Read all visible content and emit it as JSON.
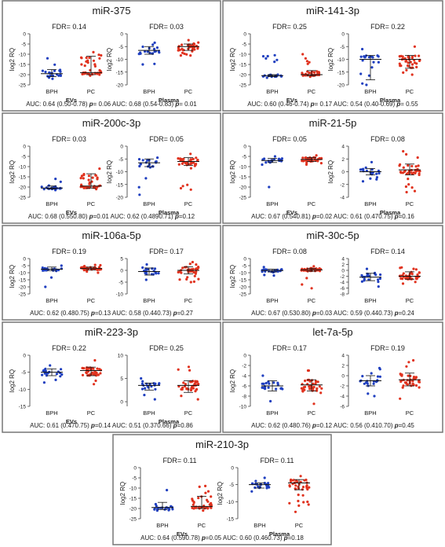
{
  "chart_data": [
    {
      "type": "scatter",
      "title": "miR-375",
      "auc": "AUC: 0.64 (0.50-0.78) p= 0.06   AUC: 0.68 (0.54-0.83) p= 0.01",
      "auc_parts": [
        "AUC: 0.64 (0.50-0.78) ",
        "p",
        "= 0.06",
        "AUC: 0.68 (0.54-0.83) ",
        "p",
        "= 0.01"
      ],
      "panels": [
        {
          "fdr": "FDR= 0.14",
          "ylabel": "log2 RQ",
          "xlabel": "EVs",
          "categories": [
            "BPH",
            "PC"
          ],
          "yticks": [
            0,
            -5,
            -10,
            -15,
            -20,
            -25
          ],
          "ylim": [
            -25,
            0
          ],
          "groups": [
            {
              "name": "BPH",
              "color": "#1f3fbf",
              "median": -19.5,
              "q1": -21,
              "q3": -17.5,
              "n": 20,
              "min": -22,
              "max": -12
            },
            {
              "name": "PC",
              "color": "#e0321e",
              "median": -19,
              "q1": -20,
              "q3": -11,
              "n": 38,
              "min": -20.5,
              "max": -9
            }
          ]
        },
        {
          "fdr": "FDR= 0.03",
          "ylabel": "log2 RQ",
          "xlabel": "Plasma",
          "categories": [
            "BPH",
            "PC"
          ],
          "yticks": [
            0,
            -5,
            -10,
            -15,
            -20
          ],
          "ylim": [
            -20,
            0
          ],
          "groups": [
            {
              "name": "BPH",
              "color": "#1f3fbf",
              "median": -6.5,
              "q1": -8,
              "q3": -5,
              "n": 20,
              "min": -12,
              "max": -3.5
            },
            {
              "name": "PC",
              "color": "#e0321e",
              "median": -5,
              "q1": -6.5,
              "q3": -4,
              "n": 38,
              "min": -8.5,
              "max": -2.5
            }
          ]
        }
      ]
    },
    {
      "type": "scatter",
      "title": "miR-141-3p",
      "auc": "AUC: 0.60 (0.46-0.74) p= 0.17   AUC: 0.54 (0.40-0.69) p= 0.55",
      "auc_parts": [
        "AUC: 0.60 (0.46-0.74) ",
        "p",
        "= 0.17",
        "AUC: 0.54 (0.40-0.69) ",
        "p",
        "= 0.55"
      ],
      "panels": [
        {
          "fdr": "FDR= 0.25",
          "ylabel": "log2 RQ",
          "xlabel": "EVs",
          "categories": [
            "BPH",
            "PC"
          ],
          "yticks": [
            0,
            -5,
            -10,
            -15,
            -20,
            -25
          ],
          "ylim": [
            -25,
            0
          ],
          "groups": [
            {
              "name": "BPH",
              "color": "#1f3fbf",
              "median": -20.5,
              "q1": -21,
              "q3": -20,
              "n": 20,
              "min": -21.5,
              "max": -10.5
            },
            {
              "name": "PC",
              "color": "#e0321e",
              "median": -20,
              "q1": -20.5,
              "q3": -18,
              "n": 38,
              "min": -21,
              "max": -10
            }
          ]
        },
        {
          "fdr": "FDR= 0.22",
          "ylabel": "log2 RQ",
          "xlabel": "Plasma",
          "categories": [
            "BPH",
            "PC"
          ],
          "yticks": [
            0,
            -5,
            -10,
            -15,
            -20
          ],
          "ylim": [
            -20,
            0
          ],
          "groups": [
            {
              "name": "BPH",
              "color": "#1f3fbf",
              "median": -10,
              "q1": -18,
              "q3": -8.5,
              "n": 20,
              "min": -20,
              "max": -6
            },
            {
              "name": "PC",
              "color": "#e0321e",
              "median": -10,
              "q1": -13.5,
              "q3": -8.5,
              "n": 38,
              "min": -16,
              "max": -5
            }
          ]
        }
      ]
    },
    {
      "type": "scatter",
      "title": "miR-200c-3p",
      "auc": "AUC: 0.68 (0.550.80) p=0.01   AUC: 0.62 (0.4890.71) p=0.12",
      "auc_parts": [
        "AUC: 0.68 (0.550.80) ",
        "p",
        "=0.01",
        "AUC: 0.62 (0.4890.71) ",
        "p",
        "=0.12"
      ],
      "panels": [
        {
          "fdr": "FDR= 0.03",
          "ylabel": "log2 RQ",
          "xlabel": "EVs",
          "categories": [
            "BPH",
            "PC"
          ],
          "yticks": [
            0,
            -5,
            -10,
            -15,
            -20,
            -25
          ],
          "ylim": [
            -25,
            0
          ],
          "groups": [
            {
              "name": "BPH",
              "color": "#1f3fbf",
              "median": -20.5,
              "q1": -21,
              "q3": -19.5,
              "n": 20,
              "min": -21.5,
              "max": -16
            },
            {
              "name": "PC",
              "color": "#e0321e",
              "median": -19.5,
              "q1": -20.5,
              "q3": -13.5,
              "n": 38,
              "min": -21,
              "max": -11
            }
          ]
        },
        {
          "fdr": "FDR= 0.05",
          "ylabel": "log2 RQ",
          "xlabel": "Plasma",
          "categories": [
            "BPH",
            "PC"
          ],
          "yticks": [
            0,
            -5,
            -10,
            -15,
            -20
          ],
          "ylim": [
            -20,
            0
          ],
          "groups": [
            {
              "name": "BPH",
              "color": "#1f3fbf",
              "median": -6.5,
              "q1": -8,
              "q3": -5,
              "n": 20,
              "min": -19,
              "max": -4.5
            },
            {
              "name": "PC",
              "color": "#e0321e",
              "median": -6,
              "q1": -7.5,
              "q3": -4.5,
              "n": 38,
              "min": -17,
              "max": -3
            }
          ]
        }
      ]
    },
    {
      "type": "scatter",
      "title": "miR-21-5p",
      "auc": "AUC: 0.67 (0.540.81) p=0.02   AUC: 0.61 (0.470.75) p=0.16",
      "auc_parts": [
        "AUC: 0.67 (0.540.81) ",
        "p",
        "=0.02",
        "AUC: 0.61 (0.470.75) ",
        "p",
        "=0.16"
      ],
      "panels": [
        {
          "fdr": "FDR= 0.05",
          "ylabel": "log2 RQ",
          "xlabel": "EVs",
          "categories": [
            "BPH",
            "PC"
          ],
          "yticks": [
            0,
            -5,
            -10,
            -15,
            -20,
            -25
          ],
          "ylim": [
            -25,
            0
          ],
          "groups": [
            {
              "name": "BPH",
              "color": "#1f3fbf",
              "median": -7,
              "q1": -8,
              "q3": -6,
              "n": 20,
              "min": -20,
              "max": -5
            },
            {
              "name": "PC",
              "color": "#e0321e",
              "median": -6.5,
              "q1": -7.5,
              "q3": -5.5,
              "n": 38,
              "min": -9,
              "max": -4.5
            }
          ]
        },
        {
          "fdr": "FDR= 0.08",
          "ylabel": "log2 RQ",
          "xlabel": "Plasma",
          "categories": [
            "BPH",
            "PC"
          ],
          "yticks": [
            4,
            2,
            0,
            -2,
            -4
          ],
          "ylim": [
            -4,
            4
          ],
          "groups": [
            {
              "name": "BPH",
              "color": "#1f3fbf",
              "median": 0,
              "q1": -0.5,
              "q3": 0.5,
              "n": 20,
              "min": -1.5,
              "max": 1.5
            },
            {
              "name": "PC",
              "color": "#e0321e",
              "median": 0.3,
              "q1": -0.5,
              "q3": 1.2,
              "n": 38,
              "min": -3.2,
              "max": 3.2
            }
          ]
        }
      ]
    },
    {
      "type": "scatter",
      "title": "miR-106a-5p",
      "auc": "AUC: 0.62 (0.480.75) p=0.13   AUC: 0.58 (0.440.73) p=0.27",
      "auc_parts": [
        "AUC: 0.62 (0.480.75) ",
        "p",
        "=0.13",
        "AUC: 0.58 (0.440.73) ",
        "p",
        "=0.27"
      ],
      "panels": [
        {
          "fdr": "FDR= 0.19",
          "ylabel": "log2 RQ",
          "xlabel": "",
          "categories": [
            "BPH",
            "PC"
          ],
          "yticks": [
            0,
            -5,
            -10,
            -15,
            -20,
            -25
          ],
          "ylim": [
            -25,
            0
          ],
          "groups": [
            {
              "name": "BPH",
              "color": "#1f3fbf",
              "median": -7.5,
              "q1": -8.5,
              "q3": -6,
              "n": 20,
              "min": -20,
              "max": -5
            },
            {
              "name": "PC",
              "color": "#e0321e",
              "median": -7,
              "q1": -8,
              "q3": -6,
              "n": 38,
              "min": -10,
              "max": -4.5
            }
          ]
        },
        {
          "fdr": "FDR= 0.17",
          "ylabel": "",
          "xlabel": "",
          "categories": [
            "BPH",
            "PC"
          ],
          "yticks": [
            5,
            0,
            -5,
            -10
          ],
          "ylim": [
            -10,
            5
          ],
          "groups": [
            {
              "name": "BPH",
              "color": "#1f3fbf",
              "median": -0.5,
              "q1": -2,
              "q3": 1,
              "n": 20,
              "min": -4,
              "max": 2.5
            },
            {
              "name": "PC",
              "color": "#e0321e",
              "median": 0,
              "q1": -1.5,
              "q3": 1.5,
              "n": 38,
              "min": -5,
              "max": 3.5
            }
          ]
        }
      ]
    },
    {
      "type": "scatter",
      "title": "miR-30c-5p",
      "auc": "AUC: 0.67 (0.530.80) p=0.03   AUC: 0.59 (0.440.73) p=0.24",
      "auc_parts": [
        "AUC: 0.67 (0.530.80) ",
        "p",
        "=0.03",
        "AUC: 0.59 (0.440.73) ",
        "p",
        "=0.24"
      ],
      "panels": [
        {
          "fdr": "FDR= 0.08",
          "ylabel": "log2 RQ",
          "xlabel": "",
          "categories": [
            "BPH",
            "PC"
          ],
          "yticks": [
            0,
            -5,
            -10,
            -15,
            -20,
            -25
          ],
          "ylim": [
            -25,
            0
          ],
          "groups": [
            {
              "name": "BPH",
              "color": "#1f3fbf",
              "median": -8.5,
              "q1": -9.5,
              "q3": -7.5,
              "n": 20,
              "min": -12,
              "max": -6
            },
            {
              "name": "PC",
              "color": "#e0321e",
              "median": -8,
              "q1": -9,
              "q3": -7,
              "n": 38,
              "min": -21,
              "max": -5.5
            }
          ]
        },
        {
          "fdr": "FDR= 0.14",
          "ylabel": "",
          "xlabel": "",
          "categories": [
            "BPH",
            "PC"
          ],
          "yticks": [
            4,
            2,
            0,
            -2,
            -4,
            -6,
            -8
          ],
          "ylim": [
            -8,
            4
          ],
          "groups": [
            {
              "name": "BPH",
              "color": "#1f3fbf",
              "median": -2.3,
              "q1": -3.5,
              "q3": -1,
              "n": 20,
              "min": -5.5,
              "max": 0.5
            },
            {
              "name": "PC",
              "color": "#e0321e",
              "median": -2,
              "q1": -3,
              "q3": -0.5,
              "n": 38,
              "min": -4.5,
              "max": 1
            }
          ]
        }
      ]
    },
    {
      "type": "scatter",
      "title": "miR-223-3p",
      "auc": "AUC: 0.61 (0.470.75) p=0.14   AUC: 0.51 (0.370.66) p=0.86",
      "auc_parts": [
        "AUC: 0.61 (0.470.75) ",
        "p",
        "=0.14",
        "AUC: 0.51 (0.370.66) ",
        "p",
        "=0.86"
      ],
      "panels": [
        {
          "fdr": "FDR= 0.22",
          "ylabel": "log2 RQ",
          "xlabel": "EVs",
          "categories": [
            "BPH",
            "PC"
          ],
          "yticks": [
            0,
            -5,
            -10,
            -15
          ],
          "ylim": [
            -15,
            0
          ],
          "groups": [
            {
              "name": "BPH",
              "color": "#1f3fbf",
              "median": -5,
              "q1": -6,
              "q3": -4,
              "n": 20,
              "min": -8,
              "max": -3
            },
            {
              "name": "PC",
              "color": "#e0321e",
              "median": -4.5,
              "q1": -6,
              "q3": -3.5,
              "n": 38,
              "min": -8.5,
              "max": -1.5
            }
          ]
        },
        {
          "fdr": "FDR= 0.25",
          "ylabel": "",
          "xlabel": "Plasma",
          "categories": [
            "BPH",
            "PC"
          ],
          "yticks": [
            10,
            5,
            0
          ],
          "ylim": [
            -1,
            10
          ],
          "groups": [
            {
              "name": "BPH",
              "color": "#1f3fbf",
              "median": 3.5,
              "q1": 2.5,
              "q3": 4,
              "n": 20,
              "min": 0.5,
              "max": 5
            },
            {
              "name": "PC",
              "color": "#e0321e",
              "median": 3.5,
              "q1": 2,
              "q3": 4.5,
              "n": 38,
              "min": 0.5,
              "max": 7.5
            }
          ]
        }
      ]
    },
    {
      "type": "scatter",
      "title": "let-7a-5p",
      "auc": "AUC: 0.62 (0.480.76) p=0.12   AUC: 0.56 (0.410.70) p=0.45",
      "auc_parts": [
        "AUC: 0.62 (0.480.76) ",
        "p",
        "=0.12",
        "AUC: 0.56 (0.410.70) ",
        "p",
        "=0.45"
      ],
      "panels": [
        {
          "fdr": "FDR= 0.17",
          "ylabel": "log2 RQ",
          "xlabel": "",
          "categories": [
            "BPH",
            "PC"
          ],
          "yticks": [
            0,
            -2,
            -4,
            -6,
            -8,
            -10
          ],
          "ylim": [
            -10,
            0
          ],
          "groups": [
            {
              "name": "BPH",
              "color": "#1f3fbf",
              "median": -6,
              "q1": -7,
              "q3": -5,
              "n": 20,
              "min": -9,
              "max": -4
            },
            {
              "name": "PC",
              "color": "#e0321e",
              "median": -5.8,
              "q1": -7,
              "q3": -4.8,
              "n": 38,
              "min": -9.5,
              "max": -3
            }
          ]
        },
        {
          "fdr": "FDR= 0.19",
          "ylabel": "",
          "xlabel": "",
          "categories": [
            "BPH",
            "PC"
          ],
          "yticks": [
            4,
            2,
            0,
            -2,
            -4,
            -6
          ],
          "ylim": [
            -6,
            4
          ],
          "groups": [
            {
              "name": "BPH",
              "color": "#1f3fbf",
              "median": -1,
              "q1": -2,
              "q3": 0,
              "n": 20,
              "min": -4,
              "max": 1.5
            },
            {
              "name": "PC",
              "color": "#e0321e",
              "median": -0.8,
              "q1": -2,
              "q3": 0.5,
              "n": 38,
              "min": -4.5,
              "max": 3
            }
          ]
        }
      ]
    },
    {
      "type": "scatter",
      "title": "miR-210-3p",
      "auc": "AUC: 0.64 (0.590.78) p=0.05   AUC: 0.60 (0.460.73) p=0.18",
      "auc_parts": [
        "AUC: 0.64 (0.590.78) ",
        "p",
        "=0.05",
        "AUC: 0.60 (0.460.73) ",
        "p",
        "=0.18"
      ],
      "panels": [
        {
          "fdr": "FDR= 0.11",
          "ylabel": "log2 RQ",
          "xlabel": "EVs",
          "categories": [
            "BPH",
            "PC"
          ],
          "yticks": [
            0,
            -5,
            -10,
            -15,
            -20,
            -25
          ],
          "ylim": [
            -25,
            0
          ],
          "groups": [
            {
              "name": "BPH",
              "color": "#1f3fbf",
              "median": -19.5,
              "q1": -20.5,
              "q3": -17,
              "n": 20,
              "min": -21,
              "max": -11
            },
            {
              "name": "PC",
              "color": "#e0321e",
              "median": -19,
              "q1": -20,
              "q3": -14,
              "n": 38,
              "min": -21,
              "max": -9
            }
          ]
        },
        {
          "fdr": "FDR= 0.11",
          "ylabel": "log2 RQ",
          "xlabel": "Plasma",
          "categories": [
            "BPH",
            "PC"
          ],
          "yticks": [
            0,
            -5,
            -10,
            -15
          ],
          "ylim": [
            -15,
            0
          ],
          "groups": [
            {
              "name": "BPH",
              "color": "#1f3fbf",
              "median": -5,
              "q1": -6,
              "q3": -4.5,
              "n": 20,
              "min": -7,
              "max": -3
            },
            {
              "name": "PC",
              "color": "#e0321e",
              "median": -4.5,
              "q1": -6.5,
              "q3": -3.5,
              "n": 38,
              "min": -13,
              "max": -2.5
            }
          ]
        }
      ]
    }
  ]
}
